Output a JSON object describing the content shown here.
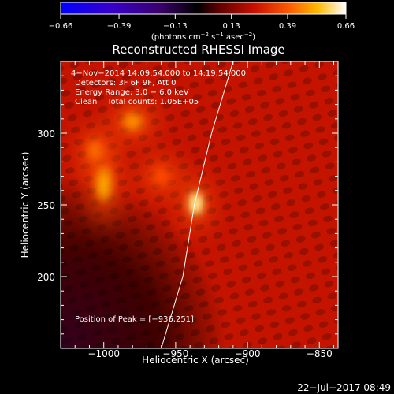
{
  "chart_data": {
    "type": "heatmap",
    "title": "Reconstructed RHESSI Image",
    "xlabel": "Heliocentric X (arcsec)",
    "ylabel": "Heliocentric Y (arcsec)",
    "xlim": [
      -1030,
      -837
    ],
    "ylim": [
      150,
      350
    ],
    "xticks": [
      -1000,
      -950,
      -900,
      -850
    ],
    "xtick_labels": [
      "−1000",
      "−950",
      "−900",
      "−850"
    ],
    "yticks": [
      200,
      250,
      300
    ],
    "ytick_labels": [
      "200",
      "250",
      "300"
    ],
    "colorbar": {
      "ticks": [
        -0.66,
        -0.39,
        -0.13,
        0.13,
        0.39,
        0.66
      ],
      "tick_labels": [
        "−0.66",
        "−0.39",
        "−0.13",
        "0.13",
        "0.39",
        "0.66"
      ],
      "range": [
        -0.66,
        0.66
      ],
      "units_text": "(photons cm",
      "units_exp1": "−2",
      "units_mid": " s",
      "units_exp2": "−1",
      "units_end": " asec",
      "units_exp3": "−2",
      "units_close": ")",
      "colormap": "rainbow-blue-black-red-yellow-white"
    },
    "annotations": [
      "4−Nov−2014 14:09:54.000 to 14:19:54.000",
      "Detectors: 3F 6F 9F, Att 0",
      "Energy Range: 3.0 − 6.0 keV",
      "Clean    Total counts: 1.05E+05",
      "Position of Peak = [−936,251]"
    ],
    "peak": {
      "x": -936,
      "y": 251
    },
    "sources": [
      {
        "x": -936,
        "y": 251,
        "sx": 5,
        "sy": 8,
        "amp": 0.66
      },
      {
        "x": -1000,
        "y": 265,
        "sx": 5,
        "sy": 12,
        "amp": 0.42
      },
      {
        "x": -980,
        "y": 308,
        "sx": 7,
        "sy": 6,
        "amp": 0.4
      },
      {
        "x": -1006,
        "y": 288,
        "sx": 5,
        "sy": 7,
        "amp": 0.3
      },
      {
        "x": -960,
        "y": 270,
        "sx": 6,
        "sy": 6,
        "amp": 0.2
      }
    ],
    "limb": [
      [
        -960,
        150
      ],
      [
        -945,
        200
      ],
      [
        -937,
        250
      ],
      [
        -925,
        300
      ],
      [
        -910,
        350
      ]
    ],
    "grid": false
  },
  "footer": {
    "timestamp": "22−Jul−2017 08:49"
  }
}
